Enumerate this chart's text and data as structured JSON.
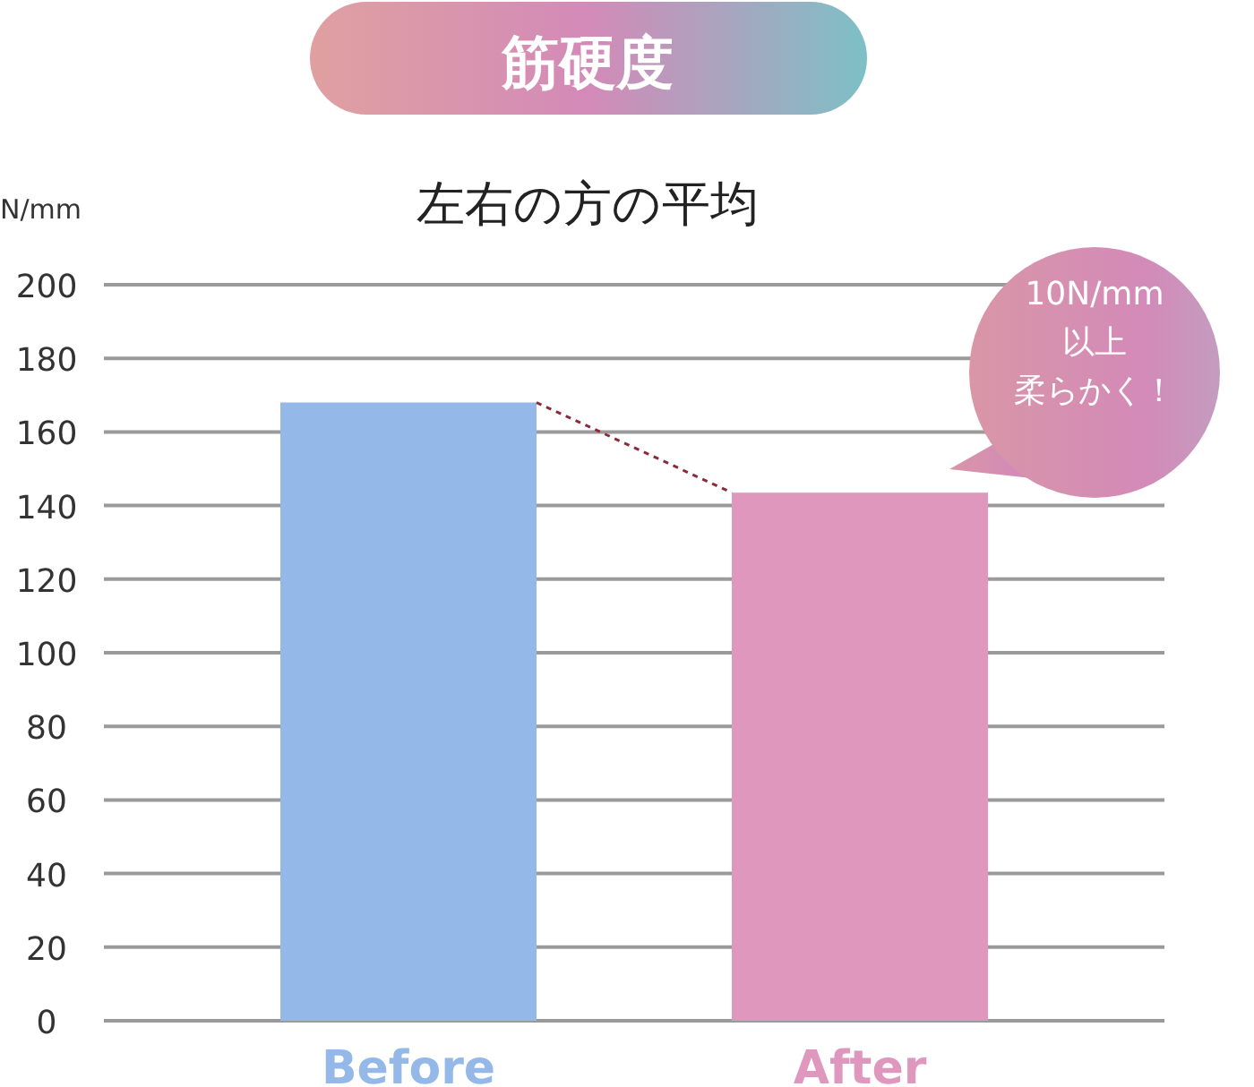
{
  "chart_data": {
    "type": "bar",
    "title": "筋硬度",
    "subtitle": "左右の方の平均",
    "ylabel": "N/mm",
    "categories": [
      "Before",
      "After"
    ],
    "values": [
      168,
      143.5
    ],
    "colors": [
      "#94b8e8",
      "#e097bd"
    ],
    "ylim": [
      0,
      200
    ],
    "yticks": [
      0,
      20,
      40,
      60,
      80,
      100,
      120,
      140,
      160,
      180,
      200
    ],
    "grid": "y",
    "annotations": [
      "10N/mm",
      "以上",
      "柔らかく！"
    ]
  }
}
